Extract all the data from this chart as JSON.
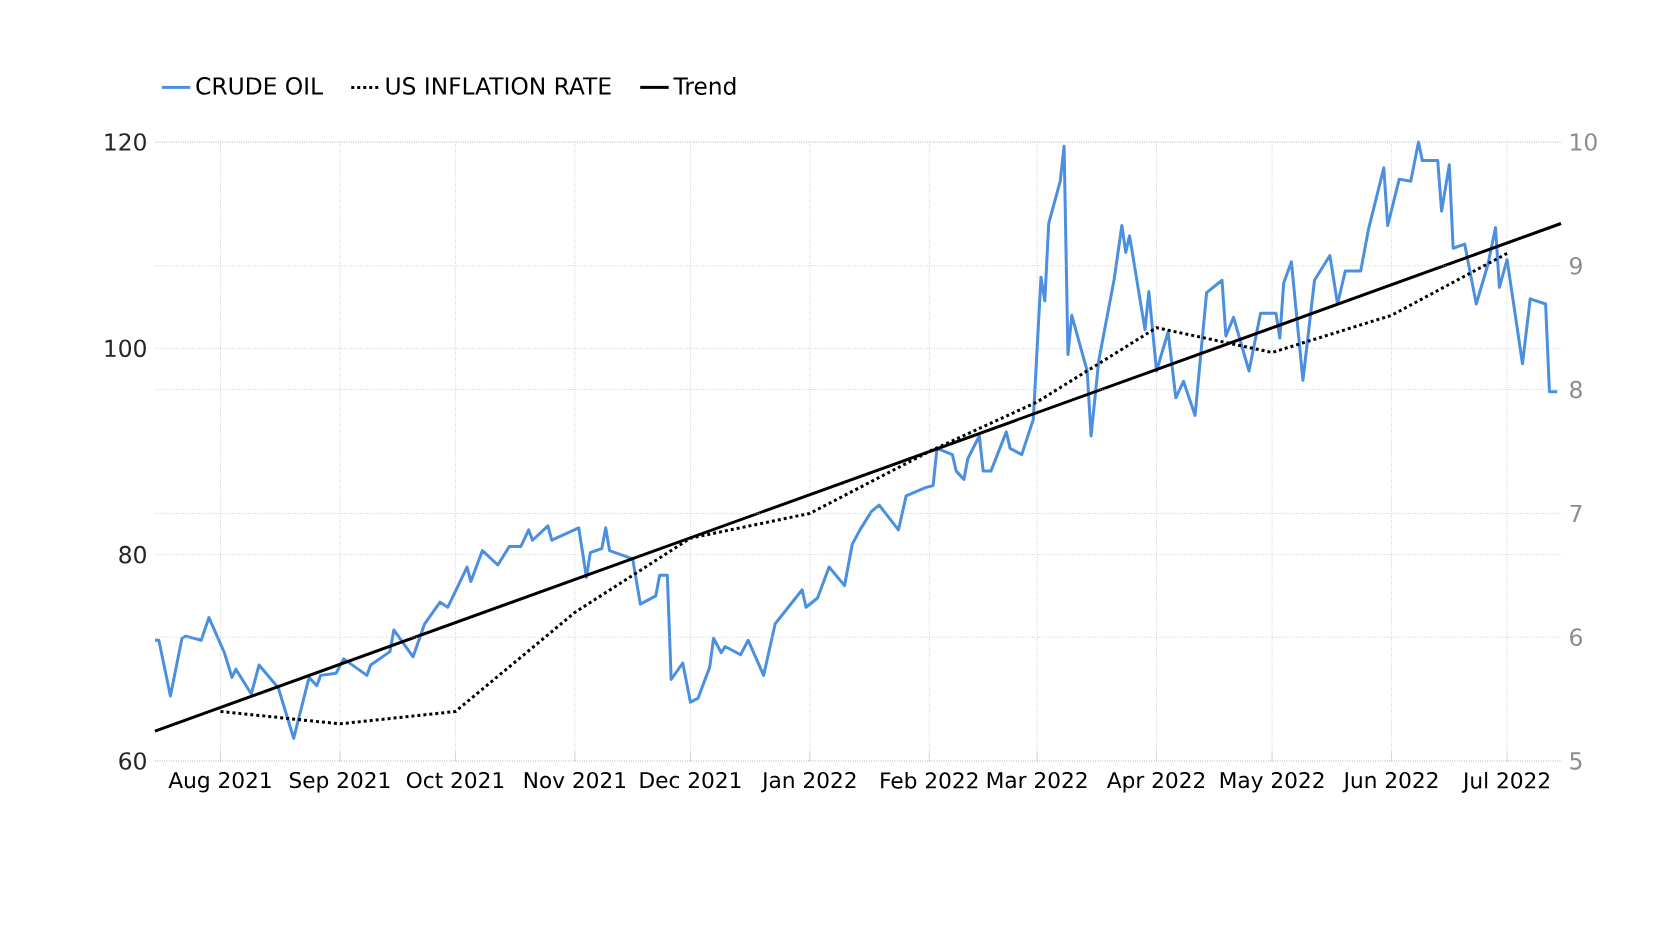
{
  "chart_data": {
    "type": "line",
    "legend": "top left",
    "grid": true,
    "xlim": [
      "2021-07-15",
      "2022-07-15"
    ],
    "xticks": [
      {
        "value": "2021-08-01",
        "label": "Aug 2021"
      },
      {
        "value": "2021-09-01",
        "label": "Sep 2021"
      },
      {
        "value": "2021-10-01",
        "label": "Oct 2021"
      },
      {
        "value": "2021-11-01",
        "label": "Nov 2021"
      },
      {
        "value": "2021-12-01",
        "label": "Dec 2021"
      },
      {
        "value": "2022-01-01",
        "label": "Jan 2022"
      },
      {
        "value": "2022-02-01",
        "label": "Feb 2022"
      },
      {
        "value": "2022-03-01",
        "label": "Mar 2022"
      },
      {
        "value": "2022-04-01",
        "label": "Apr 2022"
      },
      {
        "value": "2022-05-01",
        "label": "May 2022"
      },
      {
        "value": "2022-06-01",
        "label": "Jun 2022"
      },
      {
        "value": "2022-07-01",
        "label": "Jul 2022"
      }
    ],
    "ylim": [
      60,
      120
    ],
    "yticks": [
      60,
      80,
      100,
      120
    ],
    "y2lim": [
      5,
      10
    ],
    "y2ticks": [
      5,
      6,
      7,
      8,
      9,
      10
    ],
    "series": [
      {
        "name": "CRUDE OIL",
        "color": "#4a8fe0",
        "x": [
          "2021-07-15",
          "2021-07-16",
          "2021-07-19",
          "2021-07-22",
          "2021-07-23",
          "2021-07-27",
          "2021-07-29",
          "2021-08-02",
          "2021-08-04",
          "2021-08-05",
          "2021-08-09",
          "2021-08-11",
          "2021-08-16",
          "2021-08-20",
          "2021-08-24",
          "2021-08-26",
          "2021-08-27",
          "2021-08-31",
          "2021-09-02",
          "2021-09-08",
          "2021-09-09",
          "2021-09-14",
          "2021-09-15",
          "2021-09-20",
          "2021-09-23",
          "2021-09-27",
          "2021-09-29",
          "2021-10-04",
          "2021-10-05",
          "2021-10-08",
          "2021-10-12",
          "2021-10-15",
          "2021-10-18",
          "2021-10-20",
          "2021-10-21",
          "2021-10-25",
          "2021-10-26",
          "2021-11-02",
          "2021-11-04",
          "2021-11-05",
          "2021-11-08",
          "2021-11-09",
          "2021-11-10",
          "2021-11-16",
          "2021-11-18",
          "2021-11-22",
          "2021-11-23",
          "2021-11-25",
          "2021-11-26",
          "2021-11-29",
          "2021-12-01",
          "2021-12-03",
          "2021-12-06",
          "2021-12-07",
          "2021-12-09",
          "2021-12-10",
          "2021-12-14",
          "2021-12-16",
          "2021-12-20",
          "2021-12-23",
          "2021-12-30",
          "2021-12-31",
          "2022-01-03",
          "2022-01-06",
          "2022-01-10",
          "2022-01-12",
          "2022-01-14",
          "2022-01-17",
          "2022-01-19",
          "2022-01-24",
          "2022-01-26",
          "2022-01-31",
          "2022-02-02",
          "2022-02-03",
          "2022-02-07",
          "2022-02-08",
          "2022-02-10",
          "2022-02-11",
          "2022-02-14",
          "2022-02-15",
          "2022-02-17",
          "2022-02-21",
          "2022-02-22",
          "2022-02-25",
          "2022-02-28",
          "2022-03-02",
          "2022-03-03",
          "2022-03-04",
          "2022-03-07",
          "2022-03-08",
          "2022-03-09",
          "2022-03-10",
          "2022-03-14",
          "2022-03-15",
          "2022-03-17",
          "2022-03-21",
          "2022-03-23",
          "2022-03-24",
          "2022-03-25",
          "2022-03-29",
          "2022-03-30",
          "2022-04-01",
          "2022-04-04",
          "2022-04-06",
          "2022-04-08",
          "2022-04-11",
          "2022-04-14",
          "2022-04-18",
          "2022-04-19",
          "2022-04-21",
          "2022-04-25",
          "2022-04-28",
          "2022-05-02",
          "2022-05-03",
          "2022-05-04",
          "2022-05-06",
          "2022-05-09",
          "2022-05-12",
          "2022-05-16",
          "2022-05-18",
          "2022-05-20",
          "2022-05-24",
          "2022-05-26",
          "2022-05-30",
          "2022-05-31",
          "2022-06-03",
          "2022-06-06",
          "2022-06-08",
          "2022-06-09",
          "2022-06-13",
          "2022-06-14",
          "2022-06-16",
          "2022-06-17",
          "2022-06-20",
          "2022-06-23",
          "2022-06-26",
          "2022-06-28",
          "2022-06-29",
          "2022-07-01",
          "2022-07-05",
          "2022-07-07",
          "2022-07-11",
          "2022-07-12",
          "2022-07-14"
        ],
        "values": [
          71.7,
          71.7,
          66.3,
          71.9,
          72.1,
          71.7,
          73.9,
          70.5,
          68.1,
          68.9,
          66.5,
          69.3,
          67.1,
          62.2,
          68.1,
          67.3,
          68.3,
          68.5,
          69.9,
          68.3,
          69.3,
          70.6,
          72.7,
          70.1,
          73.3,
          75.4,
          74.9,
          78.8,
          77.4,
          80.4,
          79.0,
          80.8,
          80.8,
          82.4,
          81.4,
          82.8,
          81.4,
          82.6,
          77.8,
          80.2,
          80.6,
          82.6,
          80.4,
          79.6,
          75.2,
          76.0,
          78.0,
          78.0,
          67.9,
          69.5,
          65.7,
          66.1,
          69.1,
          71.9,
          70.5,
          71.1,
          70.3,
          71.7,
          68.3,
          73.3,
          76.6,
          74.9,
          75.8,
          78.8,
          77.0,
          81.0,
          82.4,
          84.2,
          84.8,
          82.4,
          85.7,
          86.5,
          86.7,
          90.3,
          89.7,
          88.1,
          87.3,
          89.3,
          91.5,
          88.1,
          88.1,
          91.9,
          90.3,
          89.7,
          93.1,
          106.9,
          104.6,
          112.1,
          116.2,
          119.6,
          99.4,
          103.2,
          97.8,
          91.5,
          98.8,
          106.7,
          111.9,
          109.3,
          110.9,
          101.8,
          105.5,
          97.8,
          101.6,
          95.2,
          96.8,
          93.5,
          105.4,
          106.6,
          101.2,
          103.0,
          97.8,
          103.4,
          103.4,
          101.0,
          106.3,
          108.4,
          96.9,
          106.6,
          109.0,
          104.3,
          107.5,
          107.5,
          111.5,
          117.5,
          111.9,
          116.4,
          116.2,
          120.0,
          118.2,
          118.2,
          113.3,
          117.8,
          109.7,
          110.1,
          104.3,
          108.1,
          111.7,
          105.9,
          108.6,
          98.5,
          104.8,
          104.3,
          95.8,
          95.8
        ]
      },
      {
        "name": "US INFLATION RATE",
        "color": "#000000",
        "axis": "y2",
        "line_style": "dotted",
        "x": [
          "2021-08-01",
          "2021-09-01",
          "2021-10-01",
          "2021-11-01",
          "2021-12-01",
          "2022-01-01",
          "2022-02-01",
          "2022-03-01",
          "2022-04-01",
          "2022-05-01",
          "2022-06-01",
          "2022-07-01"
        ],
        "values": [
          5.4,
          5.3,
          5.4,
          6.2,
          6.8,
          7.0,
          7.5,
          7.9,
          8.5,
          8.3,
          8.6,
          9.1
        ]
      },
      {
        "name": "Trend",
        "color": "#000000",
        "line_style": "solid",
        "x": [
          "2021-07-15",
          "2022-07-15"
        ],
        "values": [
          62.9,
          112.1
        ]
      }
    ]
  }
}
